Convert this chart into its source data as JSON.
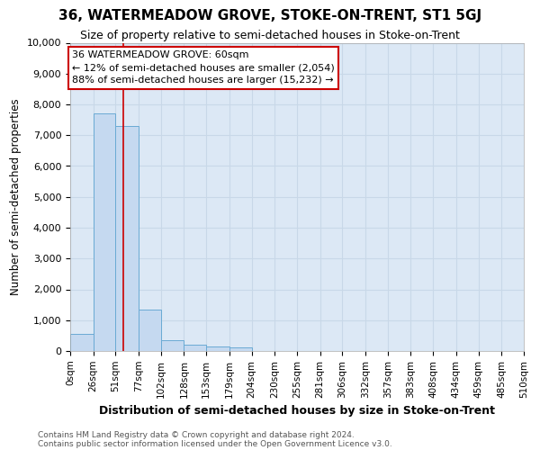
{
  "title": "36, WATERMEADOW GROVE, STOKE-ON-TRENT, ST1 5GJ",
  "subtitle": "Size of property relative to semi-detached houses in Stoke-on-Trent",
  "xlabel": "Distribution of semi-detached houses by size in Stoke-on-Trent",
  "ylabel": "Number of semi-detached properties",
  "footer_line1": "Contains HM Land Registry data © Crown copyright and database right 2024.",
  "footer_line2": "Contains public sector information licensed under the Open Government Licence v3.0.",
  "bin_edges": [
    0,
    26,
    51,
    77,
    102,
    128,
    153,
    179,
    204,
    230,
    255,
    281,
    306,
    332,
    357,
    383,
    408,
    434,
    459,
    485,
    510
  ],
  "bar_heights": [
    550,
    7700,
    7300,
    1350,
    350,
    200,
    150,
    110,
    0,
    0,
    0,
    0,
    0,
    0,
    0,
    0,
    0,
    0,
    0,
    0
  ],
  "bar_color": "#c5d9f0",
  "bar_edge_color": "#6aaad4",
  "grid_color": "#c8d8e8",
  "background_color": "#dce8f5",
  "property_size": 60,
  "property_label": "36 WATERMEADOW GROVE: 60sqm",
  "pct_smaller": 12,
  "count_smaller": 2054,
  "pct_larger": 88,
  "count_larger": 15232,
  "annotation_box_color": "#ffffff",
  "annotation_box_edge": "#cc0000",
  "red_line_color": "#cc0000",
  "ylim": [
    0,
    10000
  ],
  "yticks": [
    0,
    1000,
    2000,
    3000,
    4000,
    5000,
    6000,
    7000,
    8000,
    9000,
    10000
  ],
  "fig_bg": "#ffffff"
}
